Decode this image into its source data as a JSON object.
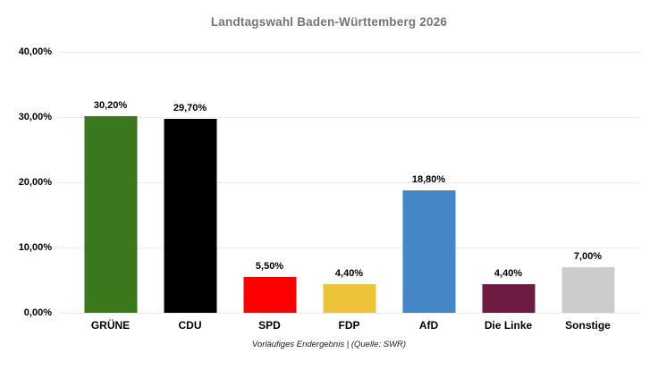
{
  "chart_data": {
    "type": "bar",
    "title": "Landtagswahl Baden-Württemberg 2026",
    "categories": [
      "GRÜNE",
      "CDU",
      "SPD",
      "FDP",
      "AfD",
      "Die Linke",
      "Sonstige"
    ],
    "values": [
      30.2,
      29.7,
      5.5,
      4.4,
      18.8,
      4.4,
      7.0
    ],
    "value_labels": [
      "30,20%",
      "29,70%",
      "5,50%",
      "4,40%",
      "18,80%",
      "4,40%",
      "7,00%"
    ],
    "bar_colors": [
      "#3a771d",
      "#000000",
      "#ff0000",
      "#edc33a",
      "#4486c6",
      "#6e1b44",
      "#cccccc"
    ],
    "xlabel": "",
    "ylabel": "",
    "ylim": [
      0,
      40
    ],
    "yticks": [
      {
        "value": 0,
        "label": "0,00%"
      },
      {
        "value": 10,
        "label": "10,00%"
      },
      {
        "value": 20,
        "label": "20,00%"
      },
      {
        "value": 30,
        "label": "30,00%"
      },
      {
        "value": 40,
        "label": "40,00%"
      }
    ],
    "grid": "horizontal",
    "legend": "none",
    "footnote": "Vorläufiges Endergebnis | (Quelle: SWR)",
    "title_color": "#757575",
    "gridline_color": "#ececec"
  }
}
